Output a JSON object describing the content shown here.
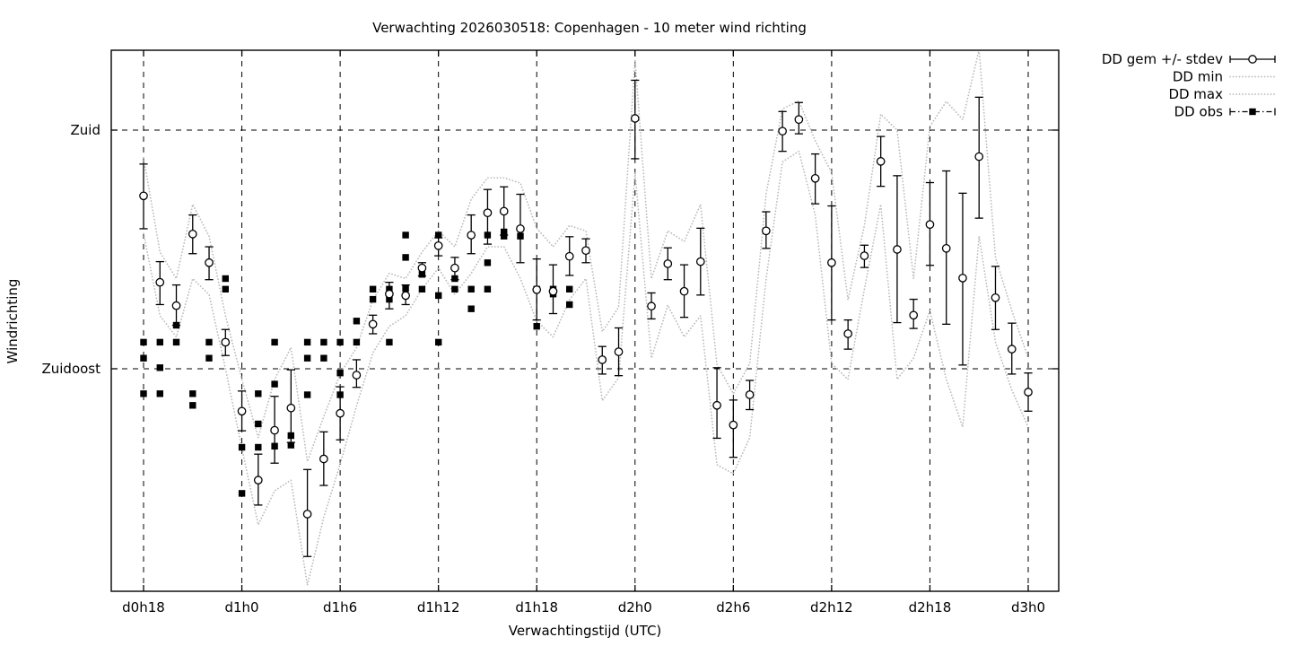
{
  "title": "Verwachting 2026030518: Copenhagen - 10 meter wind richting",
  "axes": {
    "xlabel": "Verwachtingstijd (UTC)",
    "ylabel": "Windrichting",
    "xticks": [
      {
        "label": "d0h18",
        "hour": 18
      },
      {
        "label": "d1h0",
        "hour": 24
      },
      {
        "label": "d1h6",
        "hour": 30
      },
      {
        "label": "d1h12",
        "hour": 36
      },
      {
        "label": "d1h18",
        "hour": 42
      },
      {
        "label": "d2h0",
        "hour": 48
      },
      {
        "label": "d2h6",
        "hour": 54
      },
      {
        "label": "d2h12",
        "hour": 60
      },
      {
        "label": "d2h18",
        "hour": 66
      },
      {
        "label": "d3h0",
        "hour": 72
      }
    ],
    "yticks": [
      {
        "label": "Zuid",
        "deg": 180
      },
      {
        "label": "Zuidoost",
        "deg": 135
      }
    ],
    "x_range_hours": [
      16.0,
      73.9
    ],
    "y_range_deg": [
      93.0,
      195.1
    ],
    "grid": true
  },
  "legend": [
    {
      "label": "DD gem +/- stdev",
      "key": "gem"
    },
    {
      "label": "DD min",
      "key": "min"
    },
    {
      "label": "DD max",
      "key": "max"
    },
    {
      "label": "DD obs",
      "key": "obs"
    }
  ],
  "colors": {
    "fg": "#000000",
    "envelope": "#b9b9b9",
    "bg": "#ffffff"
  },
  "chart_data": {
    "type": "line",
    "x_unit": "forecast hour offset (d0h18 = hour 18)",
    "y_unit": "wind direction, degrees (Zuid=180, Zuidoost=135)",
    "legend_position": "outside top-right",
    "series": [
      {
        "name": "DD gem +/- stdev",
        "style": "errorbars-with-open-circles",
        "points_h_mean_lo_hi": [
          [
            18,
            167.6,
            161.4,
            173.6
          ],
          [
            19,
            151.3,
            147.1,
            155.2
          ],
          [
            20,
            146.9,
            143.2,
            150.8
          ],
          [
            21,
            160.4,
            156.7,
            164.0
          ],
          [
            22,
            155.0,
            151.8,
            158.0
          ],
          [
            23,
            140.0,
            137.5,
            142.4
          ],
          [
            24,
            127.0,
            123.3,
            130.8
          ],
          [
            25,
            114.0,
            109.3,
            118.9
          ],
          [
            26,
            123.4,
            117.2,
            129.8
          ],
          [
            27,
            127.6,
            121.1,
            134.8
          ],
          [
            28,
            107.6,
            99.6,
            116.0
          ],
          [
            29,
            118.0,
            113.0,
            123.1
          ],
          [
            30,
            126.6,
            121.6,
            131.6
          ],
          [
            31,
            133.8,
            131.5,
            136.7
          ],
          [
            32,
            143.4,
            141.6,
            145.1
          ],
          [
            33,
            149.1,
            146.3,
            151.3
          ],
          [
            34,
            148.8,
            147.1,
            150.8
          ],
          [
            35,
            154.0,
            152.5,
            155.0
          ],
          [
            36,
            158.2,
            156.3,
            159.7
          ],
          [
            37,
            154.0,
            151.8,
            156.0
          ],
          [
            38,
            160.2,
            156.7,
            164.0
          ],
          [
            39,
            164.4,
            158.5,
            168.8
          ],
          [
            40,
            164.7,
            160.2,
            169.3
          ],
          [
            41,
            161.4,
            155.0,
            167.9
          ],
          [
            42,
            149.9,
            144.2,
            155.7
          ],
          [
            43,
            149.6,
            145.4,
            154.6
          ],
          [
            44,
            156.2,
            152.6,
            159.9
          ],
          [
            45,
            157.3,
            155.0,
            159.5
          ],
          [
            46,
            136.7,
            134.0,
            139.2
          ],
          [
            47,
            138.2,
            133.7,
            142.7
          ],
          [
            48,
            182.2,
            174.6,
            189.4
          ],
          [
            49,
            146.8,
            144.4,
            149.3
          ],
          [
            50,
            154.8,
            151.8,
            157.8
          ],
          [
            51,
            149.6,
            144.7,
            154.6
          ],
          [
            52,
            155.2,
            148.9,
            161.5
          ],
          [
            53,
            128.1,
            121.9,
            135.2
          ],
          [
            54,
            124.4,
            118.3,
            129.1
          ],
          [
            55,
            130.1,
            127.3,
            132.8
          ],
          [
            56,
            161.0,
            157.7,
            164.6
          ],
          [
            57,
            179.8,
            176.0,
            183.5
          ],
          [
            58,
            182.0,
            179.3,
            185.2
          ],
          [
            59,
            170.9,
            166.1,
            175.5
          ],
          [
            60,
            155.0,
            144.2,
            165.7
          ],
          [
            61,
            141.6,
            138.7,
            144.2
          ],
          [
            62,
            156.3,
            154.1,
            158.3
          ],
          [
            63,
            174.1,
            169.4,
            178.8
          ],
          [
            64,
            157.5,
            143.7,
            171.4
          ],
          [
            65,
            145.1,
            142.6,
            148.1
          ],
          [
            66,
            162.2,
            154.5,
            170.1
          ],
          [
            67,
            157.7,
            143.4,
            172.3
          ],
          [
            68,
            152.1,
            135.7,
            168.1
          ],
          [
            69,
            175.0,
            163.4,
            186.2
          ],
          [
            70,
            148.4,
            142.4,
            154.3
          ],
          [
            71,
            138.7,
            134.0,
            143.6
          ],
          [
            72,
            130.6,
            127.0,
            134.2
          ]
        ]
      },
      {
        "name": "DD min",
        "style": "dotted-grey-line",
        "hours": [
          18,
          19,
          20,
          21,
          22,
          23,
          24,
          25,
          26,
          27,
          28,
          29,
          30,
          31,
          32,
          33,
          34,
          35,
          36,
          37,
          38,
          39,
          40,
          41,
          42,
          43,
          44,
          45,
          46,
          47,
          48,
          49,
          50,
          51,
          52,
          53,
          54,
          55,
          56,
          57,
          58,
          59,
          60,
          61,
          62,
          63,
          64,
          65,
          66,
          67,
          68,
          69,
          70,
          71,
          72
        ],
        "values": [
          160.5,
          145,
          141,
          152,
          149,
          135,
          120,
          105.6,
          112,
          114,
          94.2,
          107,
          117,
          128,
          138,
          143,
          145,
          150,
          154,
          149,
          153,
          158,
          158,
          152,
          144,
          141,
          148,
          152,
          129,
          133.3,
          172,
          137,
          147,
          141,
          145,
          116.9,
          115.2,
          122,
          152,
          174,
          176,
          164,
          136,
          133,
          150,
          166,
          133,
          137,
          146,
          133,
          124,
          160,
          140,
          131,
          124
        ]
      },
      {
        "name": "DD max",
        "style": "dotted-grey-line",
        "hours": [
          18,
          19,
          20,
          21,
          22,
          23,
          24,
          25,
          26,
          27,
          28,
          29,
          30,
          31,
          32,
          33,
          34,
          35,
          36,
          37,
          38,
          39,
          40,
          41,
          42,
          43,
          44,
          45,
          46,
          47,
          48,
          49,
          50,
          51,
          52,
          53,
          54,
          55,
          56,
          57,
          58,
          59,
          60,
          61,
          62,
          63,
          64,
          65,
          66,
          67,
          68,
          69,
          70,
          71,
          72
        ],
        "values": [
          174.8,
          157,
          152,
          166,
          160,
          145,
          133,
          122,
          133,
          139,
          117.5,
          126,
          134,
          139,
          148,
          153,
          152,
          157,
          161,
          158,
          167,
          171,
          171,
          170,
          161.5,
          158,
          162,
          161,
          142,
          146.6,
          193.3,
          152,
          161,
          159,
          166,
          135.8,
          130.3,
          136,
          168,
          184,
          185.5,
          178,
          172,
          148,
          162,
          183,
          180,
          152,
          180.7,
          185.4,
          182,
          195.1,
          156,
          146,
          137
        ]
      },
      {
        "name": "DD obs",
        "style": "filled-squares",
        "points_h_v": [
          [
            18,
            140
          ],
          [
            18,
            137
          ],
          [
            18,
            130.3
          ],
          [
            19,
            140
          ],
          [
            19,
            135.2
          ],
          [
            19,
            130.3
          ],
          [
            20,
            143.2
          ],
          [
            20,
            140
          ],
          [
            21,
            130.3
          ],
          [
            21,
            128.1
          ],
          [
            22,
            140
          ],
          [
            22,
            137
          ],
          [
            23,
            152
          ],
          [
            23,
            150
          ],
          [
            23,
            140
          ],
          [
            24,
            120.2
          ],
          [
            24,
            111.5
          ],
          [
            25,
            130.3
          ],
          [
            25,
            124.6
          ],
          [
            25,
            120.2
          ],
          [
            26,
            140
          ],
          [
            26,
            132.1
          ],
          [
            26,
            120.4
          ],
          [
            27,
            122.4
          ],
          [
            27,
            120.6
          ],
          [
            28,
            140
          ],
          [
            28,
            137
          ],
          [
            28,
            130.1
          ],
          [
            29,
            140
          ],
          [
            29,
            137
          ],
          [
            30,
            140
          ],
          [
            30,
            134.2
          ],
          [
            30,
            130.1
          ],
          [
            31,
            144
          ],
          [
            31,
            140
          ],
          [
            32,
            150
          ],
          [
            32,
            148.1
          ],
          [
            33,
            150
          ],
          [
            33,
            148.1
          ],
          [
            33,
            140
          ],
          [
            34,
            160.2
          ],
          [
            34,
            156
          ],
          [
            34,
            150.1
          ],
          [
            35,
            152.8
          ],
          [
            35,
            150
          ],
          [
            36,
            160.2
          ],
          [
            36,
            148.8
          ],
          [
            36,
            140
          ],
          [
            37,
            152
          ],
          [
            37,
            150
          ],
          [
            38,
            150
          ],
          [
            38,
            146.3
          ],
          [
            39,
            160.2
          ],
          [
            39,
            155
          ],
          [
            39,
            150
          ],
          [
            40,
            160.8
          ],
          [
            40,
            160
          ],
          [
            41,
            160
          ],
          [
            42,
            150
          ],
          [
            42,
            143
          ],
          [
            43,
            150
          ],
          [
            43,
            149.1
          ],
          [
            44,
            150
          ],
          [
            44,
            147.1
          ]
        ]
      }
    ]
  }
}
